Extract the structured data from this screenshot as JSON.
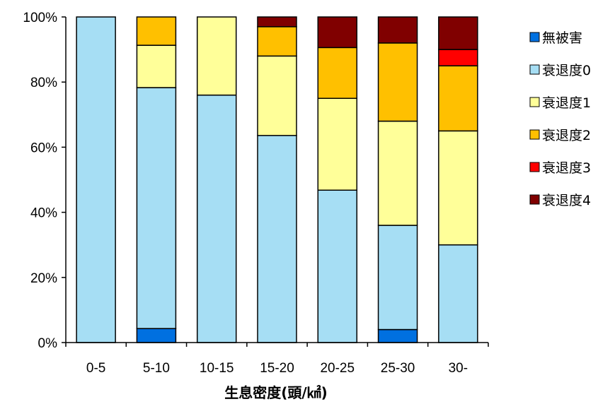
{
  "chart_data": {
    "type": "bar",
    "stacked": true,
    "categories": [
      "0-5",
      "5-10",
      "10-15",
      "15-20",
      "20-25",
      "25-30",
      "30-"
    ],
    "series": [
      {
        "name": "無被害",
        "color": "#0070E0",
        "values": [
          0,
          4.3,
          0,
          0,
          0,
          4,
          0
        ]
      },
      {
        "name": "衰退度0",
        "color": "#A6DEF4",
        "values": [
          100,
          74,
          76,
          63.6,
          46.8,
          32,
          30
        ]
      },
      {
        "name": "衰退度1",
        "color": "#FFFF99",
        "values": [
          0,
          13,
          24,
          24.4,
          28.2,
          32,
          35
        ]
      },
      {
        "name": "衰退度2",
        "color": "#FFC000",
        "values": [
          0,
          8.7,
          0,
          9,
          15.6,
          24,
          20
        ]
      },
      {
        "name": "衰退度3",
        "color": "#FF0000",
        "values": [
          0,
          0,
          0,
          0,
          0,
          0,
          5
        ]
      },
      {
        "name": "衰退度4",
        "color": "#800000",
        "values": [
          0,
          0,
          0,
          3,
          9.4,
          8,
          10
        ]
      }
    ],
    "xlabel": "生息密度(頭/㎢)",
    "ylabel": "",
    "ylim": [
      0,
      100
    ],
    "yticks": [
      "0%",
      "20%",
      "40%",
      "60%",
      "80%",
      "100%"
    ],
    "legend_position": "right",
    "grid": false
  }
}
